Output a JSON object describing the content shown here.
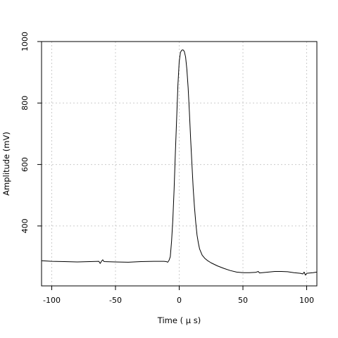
{
  "chart_data": {
    "type": "line",
    "title": "",
    "xlabel": "Time ( μ s)",
    "ylabel": "Amplitude (mV)",
    "xlim": [
      -108,
      108
    ],
    "ylim": [
      205,
      1000
    ],
    "x_ticks": [
      -100,
      -50,
      0,
      50,
      100
    ],
    "y_ticks": [
      400,
      600,
      800,
      1000
    ],
    "grid": true,
    "line_color": "#000000",
    "grid_color": "#cccccc",
    "series": [
      {
        "values": [
          [
            -108,
            287
          ],
          [
            -100,
            285
          ],
          [
            -90,
            284
          ],
          [
            -80,
            283
          ],
          [
            -70,
            284
          ],
          [
            -63,
            285
          ],
          [
            -62,
            278
          ],
          [
            -61,
            285
          ],
          [
            -60,
            290
          ],
          [
            -59,
            284
          ],
          [
            -50,
            283
          ],
          [
            -40,
            282
          ],
          [
            -30,
            284
          ],
          [
            -20,
            285
          ],
          [
            -12,
            285
          ],
          [
            -10,
            284
          ],
          [
            -9,
            282
          ],
          [
            -8,
            288
          ],
          [
            -7,
            300
          ],
          [
            -6,
            350
          ],
          [
            -5,
            420
          ],
          [
            -4,
            520
          ],
          [
            -3,
            640
          ],
          [
            -2,
            750
          ],
          [
            -1,
            860
          ],
          [
            0,
            935
          ],
          [
            1,
            965
          ],
          [
            2,
            972
          ],
          [
            3,
            973
          ],
          [
            4,
            968
          ],
          [
            5,
            950
          ],
          [
            6,
            910
          ],
          [
            7,
            850
          ],
          [
            8,
            770
          ],
          [
            9,
            680
          ],
          [
            10,
            600
          ],
          [
            11,
            520
          ],
          [
            12,
            460
          ],
          [
            13,
            410
          ],
          [
            14,
            370
          ],
          [
            15,
            345
          ],
          [
            16,
            325
          ],
          [
            18,
            305
          ],
          [
            20,
            295
          ],
          [
            22,
            288
          ],
          [
            25,
            280
          ],
          [
            30,
            270
          ],
          [
            35,
            262
          ],
          [
            40,
            255
          ],
          [
            45,
            250
          ],
          [
            50,
            248
          ],
          [
            55,
            248
          ],
          [
            60,
            249
          ],
          [
            62,
            252
          ],
          [
            63,
            247
          ],
          [
            70,
            250
          ],
          [
            75,
            252
          ],
          [
            80,
            252
          ],
          [
            85,
            251
          ],
          [
            90,
            248
          ],
          [
            95,
            246
          ],
          [
            97,
            244
          ],
          [
            98,
            250
          ],
          [
            99,
            240
          ],
          [
            100,
            246
          ],
          [
            105,
            248
          ],
          [
            108,
            250
          ]
        ]
      }
    ]
  }
}
